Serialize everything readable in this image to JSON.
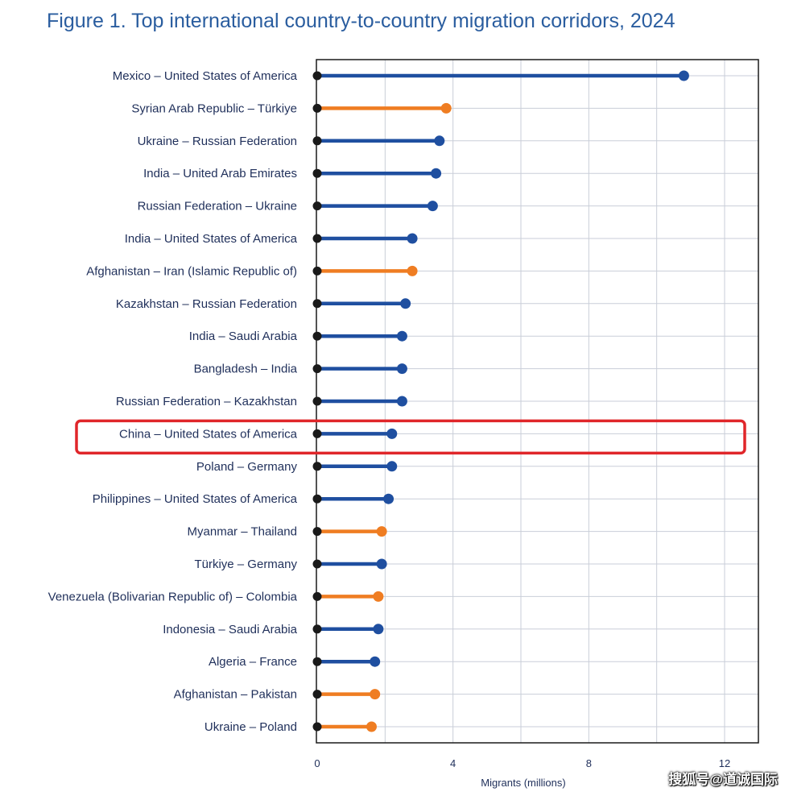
{
  "title": "Figure 1. Top international country-to-country migration corridors, 2024",
  "watermark": "搜狐号@道诚国际",
  "colors": {
    "blue": "#1f4fa0",
    "orange": "#ef7d22",
    "dot_origin": "#1a1a1a",
    "grid": "#c9ced8",
    "highlight": "#e0262a"
  },
  "chart_data": {
    "type": "lollipop",
    "orientation": "horizontal",
    "xlabel": "Migrants (millions)",
    "xlim": [
      0,
      13
    ],
    "xticks": [
      0,
      4,
      8,
      12
    ],
    "grid": true,
    "highlighted_category": "China – United States of America",
    "categories": [
      "Mexico – United States of America",
      "Syrian Arab Republic – Türkiye",
      "Ukraine – Russian Federation",
      "India – United Arab Emirates",
      "Russian Federation – Ukraine",
      "India – United States of America",
      "Afghanistan – Iran (Islamic Republic of)",
      "Kazakhstan – Russian Federation",
      "India – Saudi Arabia",
      "Bangladesh – India",
      "Russian Federation – Kazakhstan",
      "China – United States of America",
      "Poland – Germany",
      "Philippines – United States of America",
      "Myanmar – Thailand",
      "Türkiye – Germany",
      "Venezuela (Bolivarian Republic of) – Colombia",
      "Indonesia – Saudi Arabia",
      "Algeria – France",
      "Afghanistan – Pakistan",
      "Ukraine – Poland"
    ],
    "values": [
      10.8,
      3.8,
      3.6,
      3.5,
      3.4,
      2.8,
      2.8,
      2.6,
      2.5,
      2.5,
      2.5,
      2.2,
      2.2,
      2.1,
      1.9,
      1.9,
      1.8,
      1.8,
      1.7,
      1.7,
      1.6
    ],
    "colors": [
      "blue",
      "orange",
      "blue",
      "blue",
      "blue",
      "blue",
      "orange",
      "blue",
      "blue",
      "blue",
      "blue",
      "blue",
      "blue",
      "blue",
      "orange",
      "blue",
      "orange",
      "blue",
      "blue",
      "orange",
      "orange"
    ]
  }
}
